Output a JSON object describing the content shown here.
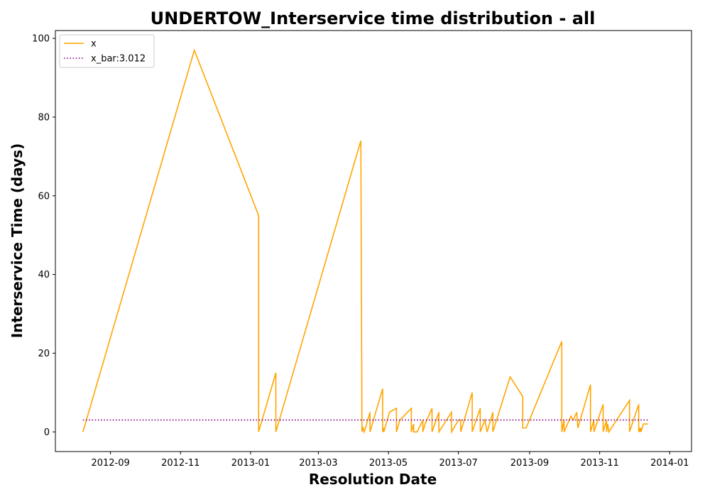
{
  "chart_data": {
    "type": "line",
    "title": "UNDERTOW_Interservice time distribution - all",
    "xlabel": "Resolution Date",
    "ylabel": "Interservice Time (days)",
    "xlim": [
      "2012-07-15",
      "2014-01-20"
    ],
    "ylim": [
      -5,
      102
    ],
    "xticks": [
      "2012-09",
      "2012-11",
      "2013-01",
      "2013-03",
      "2013-05",
      "2013-07",
      "2013-09",
      "2013-11",
      "2014-01"
    ],
    "yticks": [
      0,
      20,
      40,
      60,
      80,
      100
    ],
    "grid": false,
    "legend_position": "top-left",
    "colors": {
      "x": "#ffa500",
      "x_bar": "#800080"
    },
    "series": [
      {
        "name": "x",
        "style": "solid",
        "points": [
          [
            "2012-08-08",
            0
          ],
          [
            "2012-11-13",
            97
          ],
          [
            "2013-01-08",
            55
          ],
          [
            "2013-01-08",
            0
          ],
          [
            "2013-01-23",
            15
          ],
          [
            "2013-01-23",
            0
          ],
          [
            "2013-04-07",
            74
          ],
          [
            "2013-04-08",
            0
          ],
          [
            "2013-04-09",
            1
          ],
          [
            "2013-04-10",
            0
          ],
          [
            "2013-04-15",
            5
          ],
          [
            "2013-04-15",
            0
          ],
          [
            "2013-04-26",
            11
          ],
          [
            "2013-04-26",
            0
          ],
          [
            "2013-04-27",
            1
          ],
          [
            "2013-04-27",
            0
          ],
          [
            "2013-05-02",
            5
          ],
          [
            "2013-05-08",
            6
          ],
          [
            "2013-05-08",
            0
          ],
          [
            "2013-05-11",
            3
          ],
          [
            "2013-05-21",
            6
          ],
          [
            "2013-05-21",
            0
          ],
          [
            "2013-05-23",
            2
          ],
          [
            "2013-05-23",
            0
          ],
          [
            "2013-05-26",
            0
          ],
          [
            "2013-05-31",
            3
          ],
          [
            "2013-05-31",
            0
          ],
          [
            "2013-06-02",
            2
          ],
          [
            "2013-06-08",
            6
          ],
          [
            "2013-06-08",
            0
          ],
          [
            "2013-06-14",
            5
          ],
          [
            "2013-06-14",
            0
          ],
          [
            "2013-06-25",
            5
          ],
          [
            "2013-06-25",
            0
          ],
          [
            "2013-07-01",
            3
          ],
          [
            "2013-07-03",
            3
          ],
          [
            "2013-07-03",
            0
          ],
          [
            "2013-07-13",
            10
          ],
          [
            "2013-07-13",
            0
          ],
          [
            "2013-07-20",
            6
          ],
          [
            "2013-07-20",
            0
          ],
          [
            "2013-07-24",
            3
          ],
          [
            "2013-07-26",
            0
          ],
          [
            "2013-07-31",
            5
          ],
          [
            "2013-07-31",
            0
          ],
          [
            "2013-08-15",
            14
          ],
          [
            "2013-08-26",
            9
          ],
          [
            "2013-08-26",
            1
          ],
          [
            "2013-08-29",
            1
          ],
          [
            "2013-09-29",
            23
          ],
          [
            "2013-09-29",
            0
          ],
          [
            "2013-10-01",
            3
          ],
          [
            "2013-10-01",
            0
          ],
          [
            "2013-10-07",
            4
          ],
          [
            "2013-10-09",
            3
          ],
          [
            "2013-10-12",
            5
          ],
          [
            "2013-10-13",
            1
          ],
          [
            "2013-10-24",
            12
          ],
          [
            "2013-10-24",
            0
          ],
          [
            "2013-10-27",
            3
          ],
          [
            "2013-10-27",
            0
          ],
          [
            "2013-11-04",
            7
          ],
          [
            "2013-11-04",
            0
          ],
          [
            "2013-11-07",
            3
          ],
          [
            "2013-11-07",
            0
          ],
          [
            "2013-11-08",
            2
          ],
          [
            "2013-11-09",
            0
          ],
          [
            "2013-11-27",
            8
          ],
          [
            "2013-11-27",
            0
          ],
          [
            "2013-12-05",
            7
          ],
          [
            "2013-12-05",
            0
          ],
          [
            "2013-12-06",
            1
          ],
          [
            "2013-12-06",
            0
          ],
          [
            "2013-12-07",
            1
          ],
          [
            "2013-12-07",
            0
          ],
          [
            "2013-12-09",
            2
          ],
          [
            "2013-12-13",
            2
          ]
        ]
      },
      {
        "name": "x_bar:3.012",
        "style": "dotted",
        "points": [
          [
            "2012-08-08",
            3.012
          ],
          [
            "2013-12-13",
            3.012
          ]
        ]
      }
    ]
  }
}
